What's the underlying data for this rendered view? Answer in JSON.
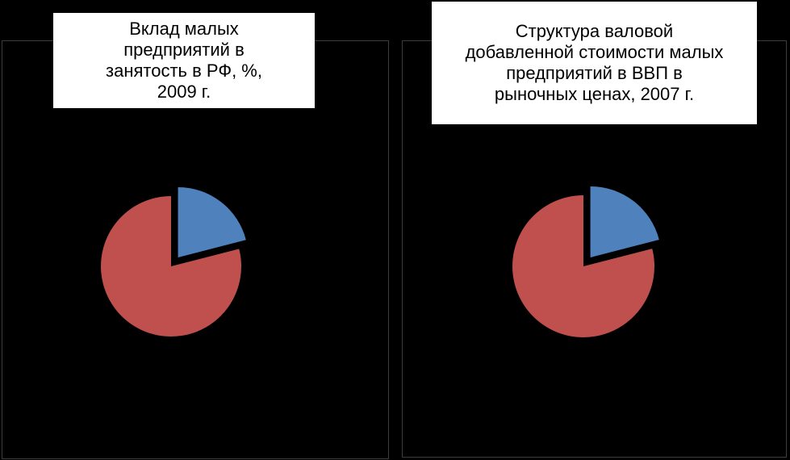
{
  "chart_data": [
    {
      "type": "pie",
      "title": "Вклад малых предприятий в занятость в РФ, %, 2009 г.",
      "categories": [
        null,
        null
      ],
      "values": [
        21,
        79
      ],
      "colors": [
        "#4f81bd",
        "#c0504d"
      ]
    },
    {
      "type": "pie",
      "title": "Структура валовой добавленной стоимости малых предприятий в ВВП в рыночных ценах, 2007 г.",
      "categories": [
        null,
        null
      ],
      "values": [
        21,
        79
      ],
      "colors": [
        "#4f81bd",
        "#c0504d"
      ]
    }
  ]
}
